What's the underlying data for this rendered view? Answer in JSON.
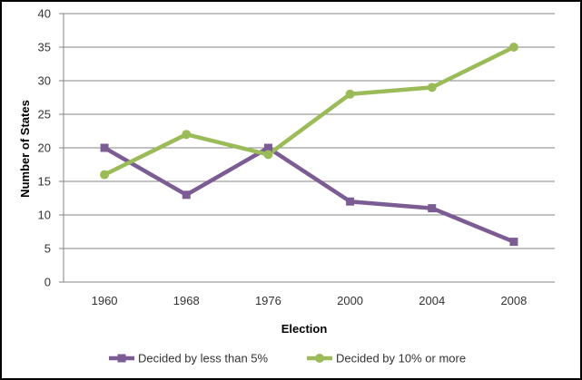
{
  "chart_data": {
    "type": "line",
    "title": "",
    "xlabel": "Election",
    "ylabel": "Number of States",
    "categories": [
      "1960",
      "1968",
      "1976",
      "2000",
      "2004",
      "2008"
    ],
    "ylim": [
      0,
      40
    ],
    "yticks": [
      0,
      5,
      10,
      15,
      20,
      25,
      30,
      35,
      40
    ],
    "grid": true,
    "legend_position": "bottom",
    "series": [
      {
        "name": "Decided by less than 5%",
        "values": [
          20,
          13,
          20,
          12,
          11,
          6
        ],
        "color": "#7b5c93",
        "marker": "square"
      },
      {
        "name": "Decided by 10% or more",
        "values": [
          16,
          22,
          19,
          28,
          29,
          35
        ],
        "color": "#9bbb59",
        "marker": "circle"
      }
    ]
  }
}
